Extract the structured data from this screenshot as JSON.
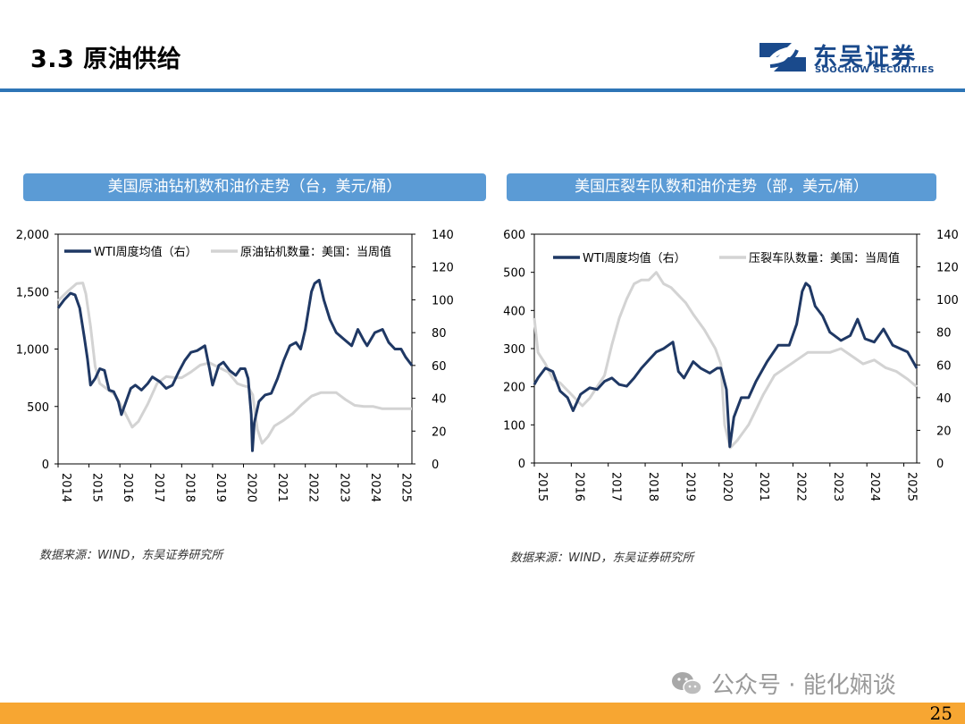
{
  "page": {
    "section_title": "3.3 原油供给",
    "logo_text": "东吴证券",
    "logo_sub": "SOOCHOW SECURITIES",
    "page_number": "25",
    "watermark": "公众号 · 能化娴谈",
    "colors": {
      "accent": "#2e75b6",
      "banner": "#5b9bd5",
      "footer": "#f7a632",
      "series_dark": "#1f3864",
      "series_light": "#d3d3d3"
    }
  },
  "chart_data": [
    {
      "type": "line",
      "title": "美国原油钻机数和油价走势（台，美元/桶）",
      "source": "数据来源：WIND，东吴证券研究所",
      "x_ticks": [
        "2014",
        "2015",
        "2016",
        "2017",
        "2018",
        "2019",
        "2020",
        "2021",
        "2022",
        "2023",
        "2024",
        "2025"
      ],
      "xlim": [
        2014.0,
        2025.45
      ],
      "y_left": {
        "ticks": [
          "0",
          "500",
          "1,000",
          "1,500",
          "2,000"
        ],
        "lim": [
          0,
          2000
        ]
      },
      "y_right": {
        "ticks": [
          "0",
          "20",
          "40",
          "60",
          "80",
          "100",
          "120",
          "140"
        ],
        "lim": [
          0,
          140
        ]
      },
      "legend": "top-left",
      "series": [
        {
          "name": "WTI周度均值（右）",
          "axis": "right",
          "color": "#1f3864",
          "x": [
            2014.0,
            2014.2,
            2014.4,
            2014.55,
            2014.7,
            2014.85,
            2014.95,
            2015.05,
            2015.2,
            2015.35,
            2015.5,
            2015.65,
            2015.8,
            2015.95,
            2016.05,
            2016.2,
            2016.35,
            2016.5,
            2016.7,
            2016.9,
            2017.05,
            2017.3,
            2017.5,
            2017.7,
            2017.9,
            2018.1,
            2018.3,
            2018.5,
            2018.75,
            2018.9,
            2019.0,
            2019.2,
            2019.35,
            2019.55,
            2019.75,
            2019.9,
            2020.05,
            2020.15,
            2020.25,
            2020.29,
            2020.35,
            2020.5,
            2020.7,
            2020.9,
            2021.1,
            2021.3,
            2021.5,
            2021.7,
            2021.85,
            2022.0,
            2022.2,
            2022.3,
            2022.45,
            2022.6,
            2022.8,
            2023.0,
            2023.25,
            2023.5,
            2023.7,
            2023.9,
            2024.0,
            2024.25,
            2024.5,
            2024.7,
            2024.9,
            2025.1,
            2025.25,
            2025.45
          ],
          "y": [
            95,
            100,
            104,
            103,
            95,
            77,
            64,
            48,
            52,
            58,
            57,
            45,
            44,
            38,
            30,
            38,
            46,
            48,
            45,
            49,
            53,
            50,
            46,
            48,
            56,
            63,
            68,
            69,
            72,
            58,
            48,
            60,
            62,
            57,
            54,
            58,
            58,
            52,
            30,
            8,
            25,
            38,
            42,
            43,
            52,
            63,
            72,
            74,
            70,
            82,
            105,
            110,
            112,
            100,
            88,
            80,
            76,
            72,
            82,
            75,
            72,
            80,
            82,
            74,
            70,
            70,
            65,
            60
          ]
        },
        {
          "name": "原油钻机数量：美国：当周值",
          "axis": "left",
          "color": "#d3d3d3",
          "x": [
            2014.0,
            2014.3,
            2014.6,
            2014.8,
            2014.9,
            2015.05,
            2015.2,
            2015.35,
            2015.6,
            2015.85,
            2016.1,
            2016.25,
            2016.4,
            2016.6,
            2016.9,
            2017.2,
            2017.5,
            2017.8,
            2018.0,
            2018.3,
            2018.6,
            2018.9,
            2019.2,
            2019.5,
            2019.8,
            2020.0,
            2020.15,
            2020.3,
            2020.45,
            2020.6,
            2020.8,
            2021.0,
            2021.3,
            2021.6,
            2021.9,
            2022.2,
            2022.5,
            2022.8,
            2023.0,
            2023.3,
            2023.6,
            2023.9,
            2024.2,
            2024.5,
            2024.8,
            2025.1,
            2025.45
          ],
          "y": [
            1420,
            1500,
            1570,
            1575,
            1480,
            1200,
            850,
            700,
            650,
            600,
            480,
            400,
            320,
            370,
            520,
            700,
            760,
            750,
            750,
            800,
            860,
            880,
            840,
            800,
            700,
            680,
            670,
            600,
            300,
            180,
            240,
            330,
            380,
            440,
            520,
            590,
            620,
            620,
            620,
            560,
            510,
            500,
            500,
            480,
            480,
            480,
            480
          ]
        }
      ]
    },
    {
      "type": "line",
      "title": "美国压裂车队数和油价走势（部，美元/桶）",
      "source": "数据来源：WIND，东吴证券研究所",
      "x_ticks": [
        "2015",
        "2016",
        "2017",
        "2018",
        "2019",
        "2020",
        "2021",
        "2022",
        "2023",
        "2024",
        "2025"
      ],
      "xlim": [
        2015.0,
        2025.35
      ],
      "y_left": {
        "ticks": [
          "0",
          "100",
          "200",
          "300",
          "400",
          "500",
          "600"
        ],
        "lim": [
          0,
          600
        ]
      },
      "y_right": {
        "ticks": [
          "0",
          "20",
          "40",
          "60",
          "80",
          "100",
          "120",
          "140"
        ],
        "lim": [
          0,
          140
        ]
      },
      "legend": "top",
      "series": [
        {
          "name": "WTI周度均值（右）",
          "axis": "right",
          "color": "#1f3864",
          "x": [
            2015.0,
            2015.1,
            2015.3,
            2015.5,
            2015.7,
            2015.9,
            2016.05,
            2016.25,
            2016.5,
            2016.7,
            2016.9,
            2017.1,
            2017.3,
            2017.5,
            2017.7,
            2017.9,
            2018.1,
            2018.3,
            2018.5,
            2018.75,
            2018.9,
            2019.05,
            2019.3,
            2019.5,
            2019.75,
            2019.95,
            2020.05,
            2020.2,
            2020.29,
            2020.4,
            2020.6,
            2020.8,
            2021.0,
            2021.3,
            2021.6,
            2021.9,
            2022.1,
            2022.25,
            2022.35,
            2022.45,
            2022.6,
            2022.8,
            2023.0,
            2023.3,
            2023.55,
            2023.75,
            2023.95,
            2024.2,
            2024.45,
            2024.7,
            2024.9,
            2025.1,
            2025.35
          ],
          "y": [
            48,
            52,
            58,
            56,
            44,
            40,
            32,
            42,
            46,
            45,
            50,
            52,
            48,
            47,
            52,
            58,
            63,
            68,
            70,
            74,
            56,
            52,
            62,
            58,
            55,
            58,
            58,
            45,
            10,
            28,
            40,
            40,
            50,
            62,
            72,
            72,
            85,
            105,
            110,
            108,
            96,
            90,
            80,
            75,
            78,
            88,
            76,
            74,
            82,
            72,
            70,
            68,
            58
          ]
        },
        {
          "name": "压裂车队数量：美国：当周值",
          "axis": "left",
          "color": "#d3d3d3",
          "x": [
            2015.0,
            2015.1,
            2015.3,
            2015.5,
            2015.7,
            2015.9,
            2016.1,
            2016.3,
            2016.5,
            2016.7,
            2016.9,
            2017.1,
            2017.3,
            2017.5,
            2017.7,
            2017.9,
            2018.1,
            2018.3,
            2018.5,
            2018.7,
            2018.9,
            2019.1,
            2019.3,
            2019.6,
            2019.9,
            2020.05,
            2020.15,
            2020.3,
            2020.5,
            2020.8,
            2021.0,
            2021.2,
            2021.5,
            2021.8,
            2022.1,
            2022.4,
            2022.7,
            2023.0,
            2023.3,
            2023.6,
            2023.9,
            2024.2,
            2024.5,
            2024.8,
            2025.1,
            2025.35
          ],
          "y": [
            380,
            290,
            260,
            220,
            210,
            190,
            170,
            150,
            170,
            200,
            230,
            310,
            380,
            430,
            470,
            480,
            480,
            500,
            470,
            460,
            440,
            420,
            390,
            350,
            300,
            260,
            100,
            40,
            60,
            100,
            140,
            180,
            230,
            250,
            270,
            290,
            290,
            290,
            300,
            280,
            260,
            270,
            250,
            240,
            220,
            200
          ]
        }
      ]
    }
  ]
}
